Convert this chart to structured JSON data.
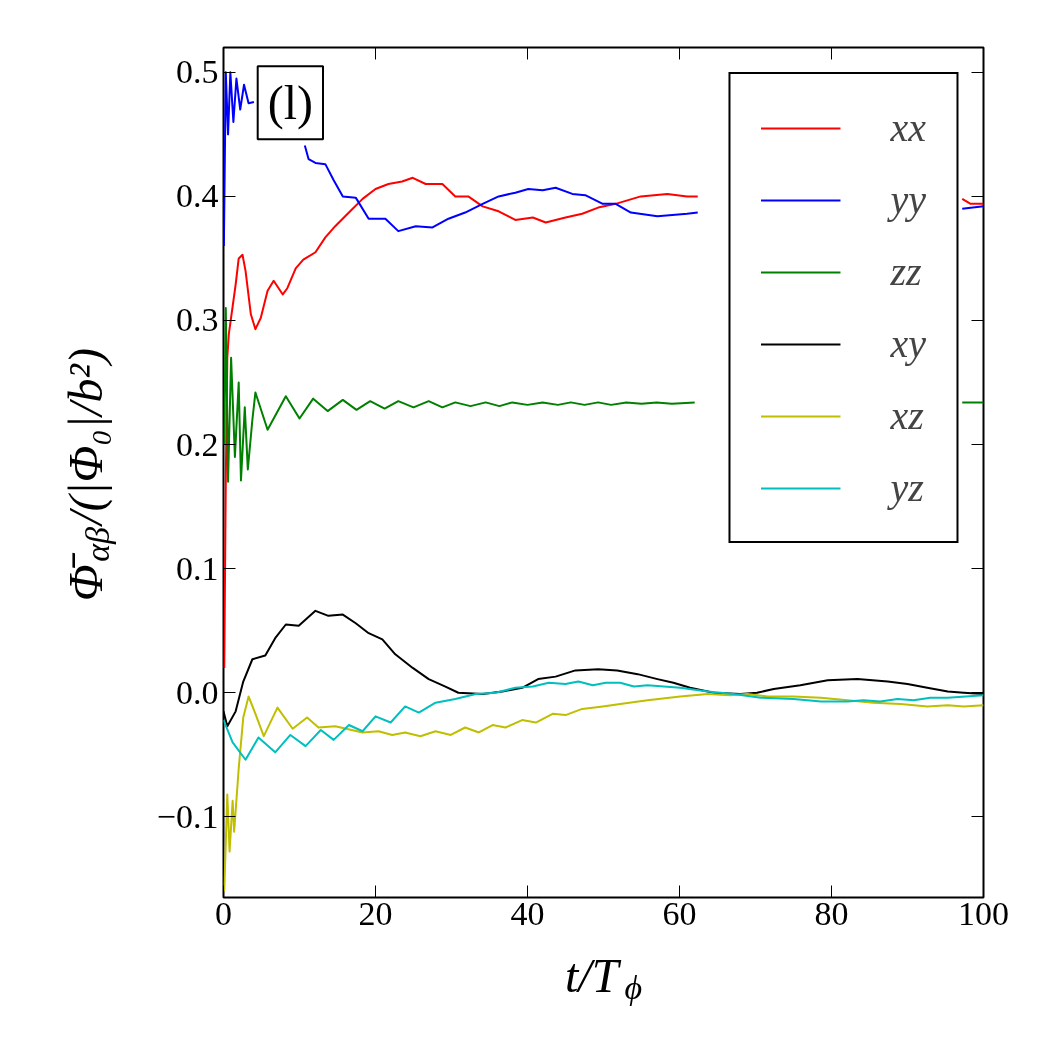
{
  "chart_data": {
    "type": "line",
    "xlabel": "t/T$_{ϕ}$",
    "ylabel": "Φ̄$_{αβ}$/(|Φ₀|/b²)",
    "annotations": [
      "(l)"
    ],
    "xlim": [
      0,
      100
    ],
    "ylim": [
      -0.165,
      0.52
    ],
    "xticks": [
      0,
      20,
      40,
      60,
      80,
      100
    ],
    "yticks": [
      {
        "value": -0.1,
        "label": "−0.1"
      },
      {
        "value": 0,
        "label": "0.0"
      },
      0.1,
      0.2,
      0.3,
      0.4,
      0.5
    ],
    "grid": false,
    "legend": "top right",
    "line_style": "solid",
    "marker": "none",
    "tick_labels": "xy",
    "series": [
      {
        "name": "xx",
        "color": "#ff0000",
        "x": [
          0.1,
          0.3,
          0.5,
          0.7,
          1.6,
          2,
          2.5,
          2.9,
          3.6,
          4.2,
          4.9,
          5.8,
          6.6,
          7.8,
          8.4,
          9.5,
          10.5,
          12.1,
          13.4,
          14.7,
          16.5,
          18.3,
          20,
          21.7,
          23.5,
          24.9,
          26.6,
          28.8,
          30.5,
          32.2,
          34.1,
          36.2,
          38.4,
          40.7,
          42.4,
          45,
          47.2,
          49.3,
          51.6,
          54.9,
          58.4,
          61,
          62.4,
          63,
          97.2,
          98.3,
          100
        ],
        "values": [
          0.02,
          0.17,
          0.27,
          0.289,
          0.329,
          0.35,
          0.353,
          0.34,
          0.305,
          0.293,
          0.302,
          0.324,
          0.332,
          0.321,
          0.326,
          0.342,
          0.349,
          0.355,
          0.367,
          0.376,
          0.387,
          0.398,
          0.406,
          0.41,
          0.412,
          0.415,
          0.41,
          0.41,
          0.4,
          0.4,
          0.392,
          0.388,
          0.381,
          0.383,
          0.379,
          0.383,
          0.386,
          0.391,
          0.394,
          0.4,
          0.402,
          0.4,
          0.4,
          null,
          0.398,
          0.394,
          0.394
        ]
      },
      {
        "name": "yy",
        "color": "#0000ff",
        "x": [
          0.05,
          0.3,
          0.6,
          0.9,
          1.3,
          1.7,
          2.2,
          2.7,
          3.3,
          4,
          7,
          10.7,
          11.2,
          12.1,
          13.4,
          14.5,
          15.7,
          17.4,
          19.1,
          21.3,
          23,
          25.3,
          27.5,
          29.6,
          31.8,
          34.1,
          36.2,
          38.4,
          40.1,
          42,
          43.7,
          45.9,
          47.6,
          49.9,
          51.6,
          53.6,
          57.1,
          61,
          62.4,
          63,
          97.2,
          100
        ],
        "values": [
          0.36,
          0.5,
          0.45,
          0.5,
          0.46,
          0.495,
          0.47,
          0.49,
          0.475,
          0.476,
          null,
          0.441,
          0.43,
          0.427,
          0.426,
          0.413,
          0.4,
          0.399,
          0.382,
          0.382,
          0.372,
          0.376,
          0.375,
          0.382,
          0.387,
          0.394,
          0.4,
          0.403,
          0.406,
          0.405,
          0.407,
          0.402,
          0.401,
          0.394,
          0.394,
          0.387,
          0.384,
          0.386,
          0.387,
          null,
          0.39,
          0.392
        ]
      },
      {
        "name": "zz",
        "color": "#008000",
        "x": [
          0.1,
          0.3,
          0.6,
          1,
          1.5,
          2,
          2.3,
          2.8,
          3.2,
          3.8,
          4.2,
          5.8,
          8.2,
          10,
          11.8,
          13.7,
          15.7,
          17.5,
          19.3,
          21.2,
          23,
          25,
          27,
          28.8,
          30.5,
          32.5,
          34.5,
          36.3,
          38,
          40,
          42,
          44,
          45.7,
          47.5,
          49.3,
          51,
          53,
          55,
          57,
          59,
          62,
          63,
          97.2,
          100
        ],
        "values": [
          0.2,
          0.31,
          0.17,
          0.27,
          0.19,
          0.25,
          0.171,
          0.23,
          0.18,
          0.22,
          0.242,
          0.212,
          0.239,
          0.221,
          0.237,
          0.227,
          0.236,
          0.228,
          0.235,
          0.229,
          0.235,
          0.23,
          0.235,
          0.23,
          0.234,
          0.231,
          0.234,
          0.231,
          0.234,
          0.232,
          0.234,
          0.232,
          0.234,
          0.232,
          0.234,
          0.232,
          0.234,
          0.233,
          0.234,
          0.233,
          0.234,
          null,
          0.234,
          0.234
        ]
      },
      {
        "name": "xy",
        "color": "#000000",
        "x": [
          0,
          0.5,
          1.6,
          2.6,
          3.8,
          5.5,
          6.8,
          8.2,
          9.9,
          12.1,
          13.8,
          15.7,
          17.4,
          19.1,
          20.9,
          22.6,
          24.9,
          27,
          29.2,
          30.9,
          34.1,
          36.7,
          39.3,
          41.4,
          43.7,
          46.3,
          49.3,
          51.8,
          54.5,
          57.1,
          59.2,
          61.4,
          64.5,
          68,
          70.2,
          72.4,
          75.9,
          79.5,
          83.4,
          87.4,
          90,
          92.6,
          95.3,
          97.4,
          100
        ],
        "values": [
          -0.015,
          -0.027,
          -0.015,
          0.009,
          0.027,
          0.03,
          0.044,
          0.055,
          0.054,
          0.066,
          0.062,
          0.063,
          0.056,
          0.048,
          0.043,
          0.031,
          0.02,
          0.011,
          0.005,
          0,
          -0.001,
          0.001,
          0.004,
          0.011,
          0.013,
          0.018,
          0.019,
          0.018,
          0.015,
          0.011,
          0.008,
          0.004,
          0,
          -0.001,
          0,
          0.003,
          0.006,
          0.01,
          0.011,
          0.009,
          0.007,
          0.004,
          0.001,
          0,
          -0.001
        ]
      },
      {
        "name": "xz",
        "color": "#bfbf00",
        "x": [
          0.1,
          0.5,
          0.8,
          1.2,
          1.4,
          2,
          2.6,
          3.3,
          4.2,
          5.3,
          7.1,
          9.1,
          11,
          12.5,
          14.7,
          18.3,
          20.4,
          22.2,
          23.9,
          25.9,
          27.9,
          29.9,
          31.8,
          33.6,
          35.4,
          37.1,
          39.3,
          41.1,
          43.3,
          45,
          47.2,
          49.9,
          52.2,
          55.8,
          60.1,
          63.7,
          66.7,
          68.9,
          71.6,
          75,
          78.6,
          82.1,
          85.5,
          89.1,
          92.6,
          95.3,
          97.4,
          100
        ],
        "values": [
          -0.16,
          -0.082,
          -0.128,
          -0.087,
          -0.112,
          -0.061,
          -0.02,
          -0.003,
          -0.017,
          -0.035,
          -0.012,
          -0.029,
          -0.02,
          -0.028,
          -0.027,
          -0.032,
          -0.031,
          -0.034,
          -0.032,
          -0.035,
          -0.031,
          -0.034,
          -0.028,
          -0.032,
          -0.026,
          -0.028,
          -0.022,
          -0.024,
          -0.017,
          -0.018,
          -0.013,
          -0.011,
          -0.009,
          -0.006,
          -0.003,
          -0.001,
          -0.002,
          -0.001,
          -0.003,
          -0.003,
          -0.004,
          -0.006,
          -0.008,
          -0.009,
          -0.011,
          -0.01,
          -0.011,
          -0.01
        ]
      },
      {
        "name": "yz",
        "color": "#00bfbf",
        "x": [
          0,
          1.2,
          2.9,
          4.6,
          6.8,
          8.8,
          10.8,
          12.8,
          14.5,
          16.5,
          18.3,
          20,
          22,
          23.9,
          25.7,
          27.9,
          30.5,
          33.2,
          35.8,
          38.4,
          40.7,
          42.8,
          45,
          46.7,
          48.6,
          50.3,
          52.2,
          54,
          55.8,
          60.1,
          63.7,
          67.1,
          70.7,
          75,
          78.6,
          82.1,
          84.2,
          86.4,
          88.7,
          90.8,
          93,
          95.3,
          100
        ],
        "values": [
          -0.022,
          -0.04,
          -0.054,
          -0.036,
          -0.048,
          -0.034,
          -0.043,
          -0.03,
          -0.038,
          -0.026,
          -0.031,
          -0.019,
          -0.024,
          -0.011,
          -0.016,
          -0.008,
          -0.005,
          -0.001,
          0,
          0.004,
          0.005,
          0.008,
          0.007,
          0.009,
          0.006,
          0.008,
          0.008,
          0.005,
          0.006,
          0.004,
          0.001,
          -0.001,
          -0.004,
          -0.005,
          -0.007,
          -0.007,
          -0.006,
          -0.007,
          -0.005,
          -0.006,
          -0.004,
          -0.004,
          -0.002
        ]
      }
    ]
  }
}
